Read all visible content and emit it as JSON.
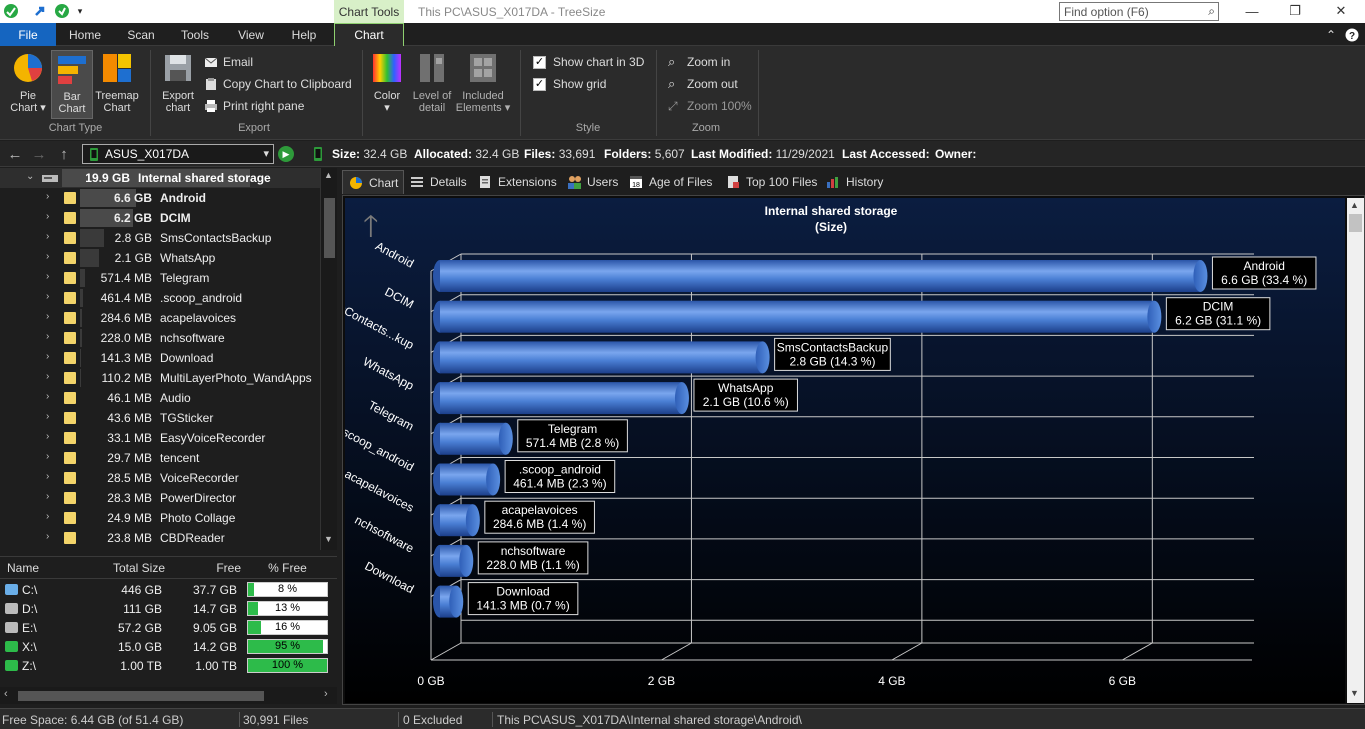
{
  "titlebar": {
    "chart_tools": "Chart Tools",
    "title": "This PC\\ASUS_X017DA - TreeSize",
    "find_placeholder": "Find option (F6)"
  },
  "tabs": [
    "File",
    "Home",
    "Scan",
    "Tools",
    "View",
    "Help",
    "Chart"
  ],
  "ribbon": {
    "chart_type": {
      "label": "Chart Type",
      "pie": "Pie\nChart ▾",
      "bar": "Bar\nChart",
      "treemap": "Treemap\nChart"
    },
    "export": {
      "label": "Export",
      "export_chart": "Export\nchart",
      "email": "Email",
      "copy": "Copy Chart to Clipboard",
      "print": "Print right pane"
    },
    "color": "Color\n▾",
    "level": "Level of\ndetail",
    "included": "Included\nElements ▾",
    "style": {
      "label": "Style",
      "show3d": "Show chart in 3D",
      "grid": "Show grid"
    },
    "zoom": {
      "label": "Zoom",
      "in": "Zoom in",
      "out": "Zoom out",
      "z100": "Zoom 100%"
    }
  },
  "address": {
    "drive": "ASUS_X017DA",
    "size_label": "Size:",
    "size": "32.4 GB",
    "alloc_label": "Allocated:",
    "alloc": "32.4 GB",
    "files_label": "Files:",
    "files": "33,691",
    "folders_label": "Folders:",
    "folders": "5,607",
    "modified_label": "Last Modified:",
    "modified": "11/29/2021",
    "accessed_label": "Last Accessed:",
    "accessed": "",
    "owner_label": "Owner:",
    "owner": ""
  },
  "tree": {
    "root": {
      "size": "19.9 GB",
      "name": "Internal shared storage"
    },
    "items": [
      {
        "size": "6.6 GB",
        "name": "Android",
        "bold": true,
        "frac": 0.33
      },
      {
        "size": "6.2 GB",
        "name": "DCIM",
        "bold": true,
        "frac": 0.31
      },
      {
        "size": "2.8 GB",
        "name": "SmsContactsBackup",
        "bold": false,
        "frac": 0.14
      },
      {
        "size": "2.1 GB",
        "name": "WhatsApp",
        "bold": false,
        "frac": 0.11
      },
      {
        "size": "571.4 MB",
        "name": "Telegram",
        "bold": false,
        "frac": 0.03
      },
      {
        "size": "461.4 MB",
        "name": ".scoop_android",
        "bold": false,
        "frac": 0.02
      },
      {
        "size": "284.6 MB",
        "name": "acapelavoices",
        "bold": false,
        "frac": 0.014
      },
      {
        "size": "228.0 MB",
        "name": "nchsoftware",
        "bold": false,
        "frac": 0.011
      },
      {
        "size": "141.3 MB",
        "name": "Download",
        "bold": false,
        "frac": 0.007
      },
      {
        "size": "110.2 MB",
        "name": "MultiLayerPhoto_WandApps",
        "bold": false,
        "frac": 0.005
      },
      {
        "size": "46.1 MB",
        "name": "Audio",
        "bold": false,
        "frac": 0.002
      },
      {
        "size": "43.6 MB",
        "name": "TGSticker",
        "bold": false,
        "frac": 0.002
      },
      {
        "size": "33.1 MB",
        "name": "EasyVoiceRecorder",
        "bold": false,
        "frac": 0.0016
      },
      {
        "size": "29.7 MB",
        "name": "tencent",
        "bold": false,
        "frac": 0.0015
      },
      {
        "size": "28.5 MB",
        "name": "VoiceRecorder",
        "bold": false,
        "frac": 0.0014
      },
      {
        "size": "28.3 MB",
        "name": "PowerDirector",
        "bold": false,
        "frac": 0.0014
      },
      {
        "size": "24.9 MB",
        "name": "Photo Collage",
        "bold": false,
        "frac": 0.0012
      },
      {
        "size": "23.8 MB",
        "name": "CBDReader",
        "bold": false,
        "frac": 0.0012
      }
    ]
  },
  "drives": {
    "headers": {
      "name": "Name",
      "total": "Total Size",
      "free": "Free",
      "pct": "% Free"
    },
    "rows": [
      {
        "name": "C:\\",
        "total": "446 GB",
        "free": "37.7 GB",
        "pct": "8 %",
        "frac": 0.08
      },
      {
        "name": "D:\\",
        "total": "111 GB",
        "free": "14.7 GB",
        "pct": "13 %",
        "frac": 0.13
      },
      {
        "name": "E:\\",
        "total": "57.2 GB",
        "free": "9.05 GB",
        "pct": "16 %",
        "frac": 0.16
      },
      {
        "name": "X:\\",
        "total": "15.0 GB",
        "free": "14.2 GB",
        "pct": "95 %",
        "frac": 0.95
      },
      {
        "name": "Z:\\",
        "total": "1.00 TB",
        "free": "1.00 TB",
        "pct": "100 %",
        "frac": 1.0
      }
    ]
  },
  "view_tabs": [
    "Chart",
    "Details",
    "Extensions",
    "Users",
    "Age of Files",
    "Top 100 Files",
    "History"
  ],
  "chart_data": {
    "type": "bar",
    "orientation": "horizontal",
    "three_d": true,
    "grid": true,
    "title": "Internal shared storage",
    "subtitle": "(Size)",
    "xlim": [
      0,
      7
    ],
    "x_ticks": [
      0,
      2,
      4,
      6
    ],
    "x_tick_labels": [
      "0 GB",
      "2 GB",
      "4 GB",
      "6 GB"
    ],
    "categories": [
      "Android",
      "DCIM",
      "SmsContacts...kup",
      "WhatsApp",
      "Telegram",
      ".scoop_android",
      "acapelavoices",
      "nchsoftware",
      "Download"
    ],
    "values": [
      6.6,
      6.2,
      2.8,
      2.1,
      0.571,
      0.461,
      0.285,
      0.228,
      0.141
    ],
    "labels": [
      [
        "Android",
        "6.6 GB (33.4 %)"
      ],
      [
        "DCIM",
        "6.2 GB (31.1 %)"
      ],
      [
        "SmsContactsBackup",
        "2.8 GB (14.3 %)"
      ],
      [
        "WhatsApp",
        "2.1 GB (10.6 %)"
      ],
      [
        "Telegram",
        "571.4 MB (2.8 %)"
      ],
      [
        ".scoop_android",
        "461.4 MB (2.3 %)"
      ],
      [
        "acapelavoices",
        "284.6 MB (1.4 %)"
      ],
      [
        "nchsoftware",
        "228.0 MB (1.1 %)"
      ],
      [
        "Download",
        "141.3 MB (0.7 %)"
      ]
    ],
    "colors": {
      "bar": "#4a7fd4",
      "background_top": "#0a1a3a",
      "background_bottom": "#000000",
      "grid": "#c8c8c8"
    }
  },
  "status": {
    "free": "Free Space: 6.44 GB  (of 51.4 GB)",
    "files": "30,991 Files",
    "excluded": "0 Excluded",
    "path": "This PC\\ASUS_X017DA\\Internal shared storage\\Android\\"
  }
}
